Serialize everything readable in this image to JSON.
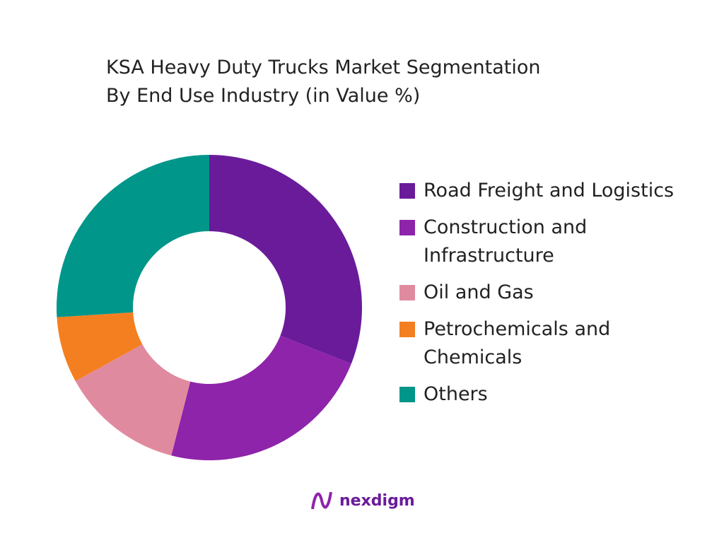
{
  "chart_data": {
    "type": "donut",
    "title": "KSA Heavy Duty Trucks Market Segmentation",
    "subtitle": "By End Use Industry (in Value %)",
    "categories": [
      "Road Freight and Logistics",
      "Construction and Infrastructure",
      "Oil and Gas",
      "Petrochemicals and Chemicals",
      "Others"
    ],
    "values": [
      31,
      23,
      13,
      7,
      26
    ],
    "colors": [
      "#6a1b9a",
      "#8e24aa",
      "#e08aa0",
      "#f47f20",
      "#00968a"
    ]
  },
  "logo": "nexdigm"
}
